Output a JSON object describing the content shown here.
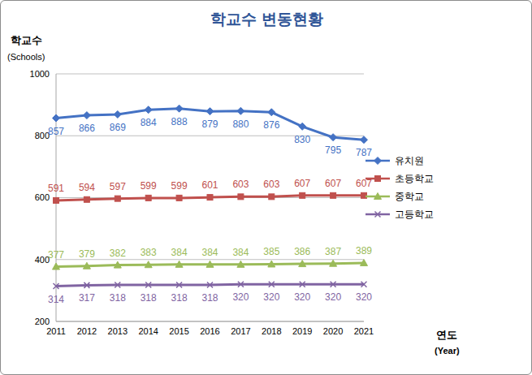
{
  "chart_data": {
    "type": "line",
    "title": "학교수 변동현황",
    "y_label": "학교수",
    "y_label_en": "(Schools)",
    "x_label": "연도",
    "x_label_en": "(Year)",
    "categories": [
      "2011",
      "2012",
      "2013",
      "2014",
      "2015",
      "2016",
      "2017",
      "2018",
      "2019",
      "2020",
      "2021"
    ],
    "series": [
      {
        "name": "유치원",
        "color": "#4472c4",
        "marker": "diamond",
        "values": [
          857,
          866,
          869,
          884,
          888,
          879,
          880,
          876,
          830,
          795,
          787
        ]
      },
      {
        "name": "초등학교",
        "color": "#c0504d",
        "marker": "square",
        "values": [
          591,
          594,
          597,
          599,
          599,
          601,
          603,
          603,
          607,
          607,
          607
        ]
      },
      {
        "name": "중학교",
        "color": "#9bbb59",
        "marker": "triangle",
        "values": [
          377,
          379,
          382,
          383,
          384,
          384,
          384,
          385,
          386,
          387,
          389
        ]
      },
      {
        "name": "고등학교",
        "color": "#8064a2",
        "marker": "x",
        "values": [
          314,
          317,
          318,
          318,
          318,
          318,
          320,
          320,
          320,
          320,
          320
        ]
      }
    ],
    "ylim": [
      200,
      1000
    ],
    "yticks": [
      200,
      400,
      600,
      800,
      1000
    ],
    "grid": true,
    "legend": "right",
    "data_labels": true
  }
}
